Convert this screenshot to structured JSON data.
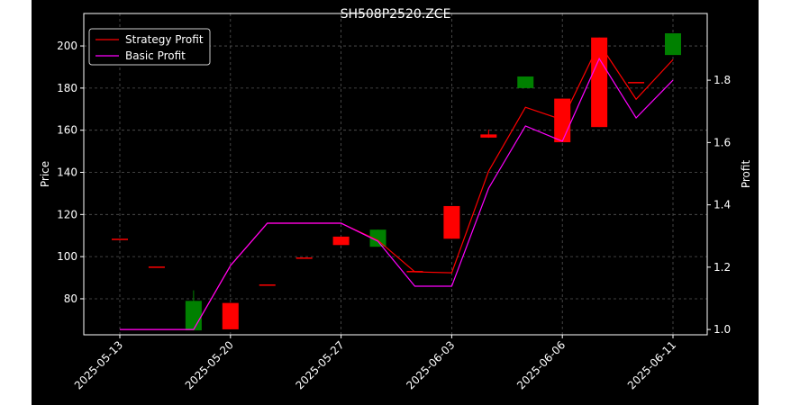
{
  "chart_data": {
    "type": "candlestick",
    "title": "SH508P2520.ZCE",
    "categories": [
      "2025-05-13",
      null,
      null,
      "2025-05-20",
      null,
      null,
      "2025-05-27",
      null,
      null,
      "2025-06-03",
      null,
      null,
      "2025-06-06",
      null,
      null,
      "2025-06-11"
    ],
    "open": [
      108.5,
      95.3,
      65,
      78,
      86.8,
      99.6,
      109.5,
      104.7,
      93.2,
      124,
      158,
      180,
      175,
      204,
      182.9,
      195.7
    ],
    "high": [
      108.5,
      95.3,
      84,
      78,
      86.8,
      99.6,
      109.5,
      112.8,
      93.2,
      124,
      160.3,
      185.5,
      175,
      204,
      182.9,
      206
    ],
    "low": [
      108.5,
      95.3,
      65,
      65.5,
      86.8,
      99.6,
      105.5,
      104.7,
      93.2,
      108.5,
      156.4,
      180,
      154.3,
      161.5,
      182.9,
      195.7
    ],
    "close": [
      108.5,
      95.3,
      79,
      65.5,
      86.8,
      99.6,
      105.5,
      112.8,
      93.2,
      108.5,
      156.5,
      185.5,
      154.3,
      161.5,
      182.9,
      206
    ],
    "up_color": "#008000",
    "down_color": "#ff0000",
    "series": [
      {
        "name": "Strategy Profit",
        "color": "#ff0000",
        "axis": "y2",
        "values": [
          1.0,
          1.0,
          1.0,
          1.205,
          1.341,
          1.341,
          1.341,
          1.286,
          1.185,
          1.182,
          1.508,
          1.713,
          1.673,
          1.918,
          1.739,
          1.866
        ]
      },
      {
        "name": "Basic Profit",
        "color": "#ff00ff",
        "axis": "y2",
        "values": [
          1.0,
          1.0,
          1.0,
          1.205,
          1.341,
          1.341,
          1.341,
          1.283,
          1.139,
          1.139,
          1.453,
          1.653,
          1.604,
          1.869,
          1.679,
          1.8
        ]
      }
    ],
    "ylabel": "Price",
    "y2label": "Profit",
    "ylim": [
      62.9,
      215.4
    ],
    "yticks": [
      80,
      100,
      120,
      140,
      160,
      180,
      200
    ],
    "y2lim": [
      0.983,
      2.014
    ],
    "y2ticks": [
      {
        "value": 1,
        "label": "1.0"
      },
      1.2,
      1.4,
      1.6,
      1.8
    ],
    "grid": true,
    "legend": "upper left"
  }
}
